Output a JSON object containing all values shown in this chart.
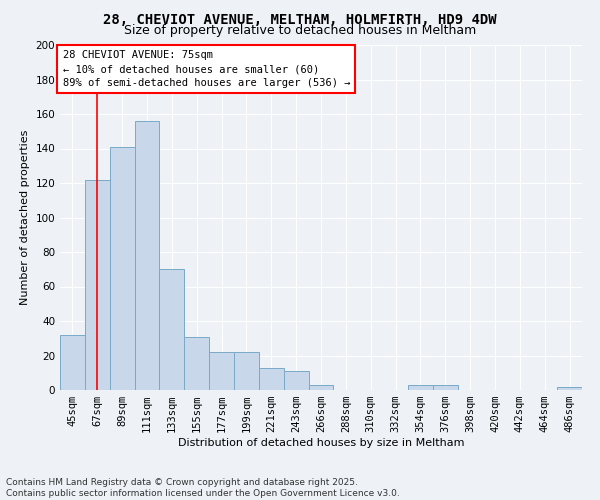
{
  "title": "28, CHEVIOT AVENUE, MELTHAM, HOLMFIRTH, HD9 4DW",
  "subtitle": "Size of property relative to detached houses in Meltham",
  "xlabel": "Distribution of detached houses by size in Meltham",
  "ylabel": "Number of detached properties",
  "bar_color": "#c8d8ea",
  "bar_edge_color": "#7aaac8",
  "categories": [
    "45sqm",
    "67sqm",
    "89sqm",
    "111sqm",
    "133sqm",
    "155sqm",
    "177sqm",
    "199sqm",
    "221sqm",
    "243sqm",
    "266sqm",
    "288sqm",
    "310sqm",
    "332sqm",
    "354sqm",
    "376sqm",
    "398sqm",
    "420sqm",
    "442sqm",
    "464sqm",
    "486sqm"
  ],
  "values": [
    32,
    122,
    141,
    156,
    70,
    31,
    22,
    22,
    13,
    11,
    3,
    0,
    0,
    0,
    3,
    3,
    0,
    0,
    0,
    0,
    2
  ],
  "ylim": [
    0,
    200
  ],
  "yticks": [
    0,
    20,
    40,
    60,
    80,
    100,
    120,
    140,
    160,
    180,
    200
  ],
  "red_line_x": 1,
  "annotation_title": "28 CHEVIOT AVENUE: 75sqm",
  "annotation_line1": "← 10% of detached houses are smaller (60)",
  "annotation_line2": "89% of semi-detached houses are larger (536) →",
  "footer_line1": "Contains HM Land Registry data © Crown copyright and database right 2025.",
  "footer_line2": "Contains public sector information licensed under the Open Government Licence v3.0.",
  "bg_color": "#eef2f7",
  "plot_bg_color": "#eef2f7",
  "grid_color": "#ffffff",
  "title_fontsize": 10,
  "subtitle_fontsize": 9,
  "axis_label_fontsize": 8,
  "tick_fontsize": 7.5,
  "annotation_fontsize": 7.5,
  "footer_fontsize": 6.5
}
